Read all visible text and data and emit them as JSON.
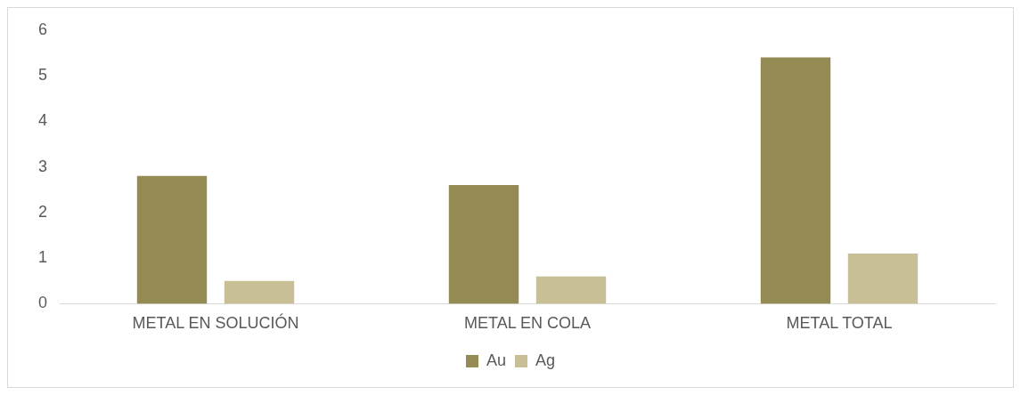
{
  "chart_data": {
    "type": "bar",
    "categories": [
      "METAL EN SOLUCIÓN",
      "METAL EN COLA",
      "METAL TOTAL"
    ],
    "series": [
      {
        "name": "Au",
        "color": "#948b54",
        "values": [
          2.8,
          2.6,
          5.4
        ]
      },
      {
        "name": "Ag",
        "color": "#c9bf97",
        "values": [
          0.5,
          0.6,
          1.1
        ]
      }
    ],
    "ylim": [
      0,
      6
    ],
    "yticks": [
      0,
      1,
      2,
      3,
      4,
      5,
      6
    ],
    "grid": false,
    "legend": "bottom"
  }
}
